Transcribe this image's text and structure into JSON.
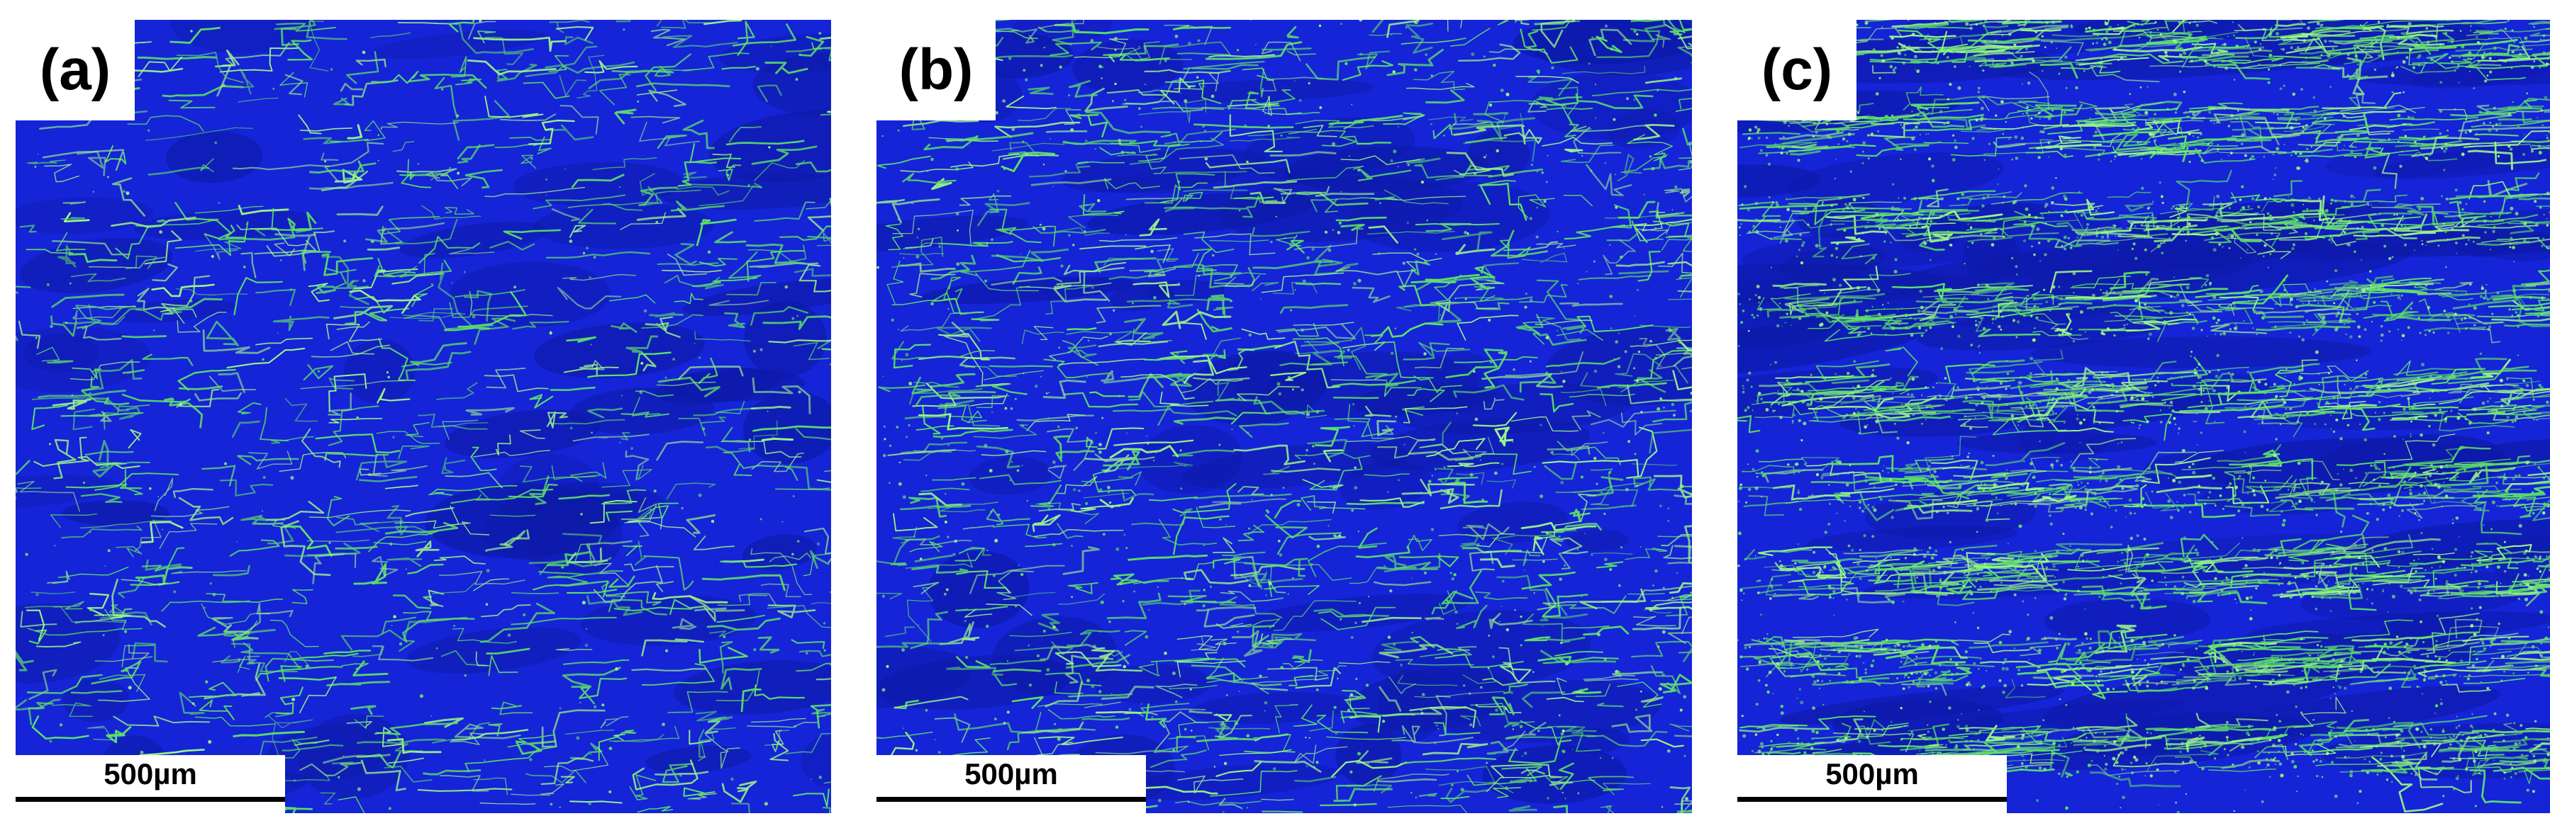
{
  "figure": {
    "panels": [
      {
        "id": "a",
        "label": "(a)",
        "scale_bar": "500µm",
        "boundary_density": 0.22,
        "banding": 0.15
      },
      {
        "id": "b",
        "label": "(b)",
        "scale_bar": "500µm",
        "boundary_density": 0.4,
        "banding": 0.3
      },
      {
        "id": "c",
        "label": "(c)",
        "scale_bar": "500µm",
        "boundary_density": 0.85,
        "banding": 0.85
      }
    ],
    "colors": {
      "matrix": "#1524d6",
      "matrix_dark": "#0d1aa8",
      "boundary": "#5de06a",
      "boundary_bright": "#9cf58a",
      "label_bg": "#ffffff",
      "text": "#000000"
    }
  }
}
